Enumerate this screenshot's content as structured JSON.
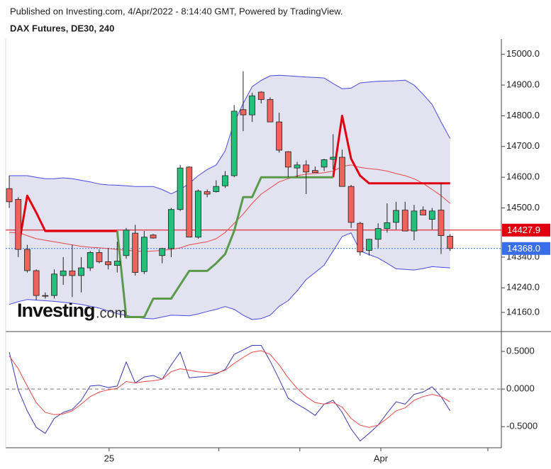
{
  "header": {
    "published": "Published on Investing.com, 4/Apr/2022 - 8:14:40 GMT, Powered by TradingView.",
    "watermark": [
      "Investing",
      ".com"
    ]
  },
  "chart_data": [
    {
      "type": "candlestick",
      "title": "DAX Futures, DE30, 240",
      "xlim": [
        -0.4,
        54.7
      ],
      "xticks": [
        11.1,
        23.3,
        32.3,
        41.3,
        53.2
      ],
      "xtick_labels": [
        "25",
        null,
        null,
        "Apr",
        null
      ],
      "ylim": [
        14100,
        15050
      ],
      "yticks": [
        {
          "value": 15000,
          "label": "15000.0"
        },
        {
          "value": 14900,
          "label": "14900.0"
        },
        {
          "value": 14800,
          "label": "14800.0"
        },
        {
          "value": 14700,
          "label": "14700.0"
        },
        {
          "value": 14600,
          "label": "14600.0"
        },
        {
          "value": 14500,
          "label": "14500.0"
        },
        {
          "value": 14340,
          "label": "14340.0"
        },
        {
          "value": 14240,
          "label": "14240.0"
        },
        {
          "value": 14160,
          "label": "14160.0"
        }
      ],
      "up_color": "#22c07a",
      "down_color": "#f0625c",
      "band_fill": "#e2e2f0",
      "open": [
        14563,
        14528,
        14365,
        14296,
        14215,
        14215,
        14280,
        14295,
        14280,
        14305,
        14355,
        14325,
        14313,
        14345,
        14418,
        14293,
        14412,
        14345,
        14368,
        14495,
        14633,
        14405,
        14553,
        14553,
        14572,
        14605,
        14820,
        14803,
        14877,
        14853,
        14780,
        14683,
        14630,
        14640,
        14622,
        14633,
        14658,
        14665,
        14570,
        14450,
        14362,
        14398,
        14433,
        14453,
        14493,
        14425,
        14493,
        14463,
        14493,
        14408
      ],
      "high": [
        14605,
        14535,
        14380,
        14300,
        14225,
        14300,
        14340,
        14380,
        14340,
        14360,
        14365,
        14370,
        14390,
        14435,
        14445,
        14425,
        14415,
        14370,
        14500,
        14640,
        14635,
        14560,
        14560,
        14590,
        14620,
        14835,
        14945,
        14875,
        14880,
        14860,
        14810,
        14685,
        14650,
        14655,
        14635,
        14660,
        14740,
        14690,
        14575,
        14455,
        14400,
        14450,
        14515,
        14520,
        14520,
        14510,
        14505,
        14500,
        14580,
        14415
      ],
      "low": [
        14500,
        14340,
        14290,
        14200,
        14205,
        14205,
        14250,
        14210,
        14225,
        14295,
        14320,
        14300,
        14290,
        14335,
        14280,
        14285,
        14400,
        14320,
        14340,
        14490,
        14405,
        14400,
        14535,
        14550,
        14565,
        14600,
        14750,
        14780,
        14840,
        14780,
        14680,
        14600,
        14600,
        14545,
        14615,
        14620,
        14625,
        14570,
        14435,
        14345,
        14345,
        14370,
        14420,
        14430,
        14425,
        14395,
        14480,
        14430,
        14350,
        14360
      ],
      "close": [
        14520,
        14365,
        14296,
        14215,
        14213,
        14285,
        14295,
        14280,
        14305,
        14355,
        14325,
        14315,
        14327,
        14428,
        14290,
        14405,
        14402,
        14368,
        14495,
        14630,
        14405,
        14555,
        14545,
        14570,
        14605,
        14815,
        14803,
        14865,
        14853,
        14780,
        14688,
        14633,
        14640,
        14617,
        14615,
        14657,
        14665,
        14570,
        14453,
        14357,
        14398,
        14433,
        14452,
        14492,
        14425,
        14490,
        14477,
        14490,
        14410,
        14368
      ],
      "series": [
        {
          "name": "upper",
          "color": "#4a4ae0",
          "width": 1,
          "values": [
            14605,
            14605,
            14605,
            14600,
            14595,
            14595,
            14598,
            14595,
            14590,
            14585,
            14578,
            14575,
            14574,
            14572,
            14570,
            14570,
            14570,
            14560,
            14546,
            14560,
            14580,
            14605,
            14625,
            14640,
            14686,
            14779,
            14840,
            14895,
            14915,
            14930,
            14932,
            14930,
            14928,
            14926,
            14925,
            14923,
            14905,
            14888,
            14890,
            14907,
            14910,
            14912,
            14913,
            14914,
            14916,
            14900,
            14870,
            14837,
            14780,
            14726
          ]
        },
        {
          "name": "lower",
          "color": "#4a4ae0",
          "width": 1,
          "values": [
            14186,
            14195,
            14202,
            14200,
            14198,
            14196,
            14193,
            14190,
            14186,
            14180,
            14174,
            14165,
            14156,
            14150,
            14144,
            14141,
            14139,
            14145,
            14151,
            14150,
            14149,
            14155,
            14163,
            14170,
            14179,
            14170,
            14151,
            14137,
            14140,
            14151,
            14180,
            14198,
            14230,
            14267,
            14290,
            14314,
            14360,
            14407,
            14419,
            14360,
            14348,
            14337,
            14320,
            14302,
            14300,
            14298,
            14303,
            14309,
            14307,
            14305
          ]
        },
        {
          "name": "basis",
          "color": "#e84848",
          "width": 1,
          "values": [
            14420,
            14420,
            14410,
            14400,
            14395,
            14390,
            14385,
            14380,
            14375,
            14372,
            14370,
            14368,
            14365,
            14362,
            14360,
            14358,
            14360,
            14362,
            14365,
            14370,
            14380,
            14385,
            14390,
            14400,
            14420,
            14450,
            14480,
            14515,
            14545,
            14565,
            14585,
            14595,
            14605,
            14610,
            14612,
            14615,
            14620,
            14635,
            14640,
            14632,
            14628,
            14625,
            14620,
            14612,
            14605,
            14595,
            14580,
            14560,
            14540,
            14515
          ]
        },
        {
          "name": "stop-down",
          "color": "#e00010",
          "width": 3,
          "values": [
            null,
            14368,
            14540,
            14485,
            14425,
            14425,
            14425,
            14425,
            14425,
            14425,
            14425,
            14425,
            14425,
            null,
            null,
            null,
            null,
            null,
            null,
            null,
            null,
            null,
            null,
            null,
            null,
            null,
            null,
            null,
            null,
            null,
            null,
            null,
            null,
            null,
            null,
            null,
            14600,
            14800,
            14660,
            14605,
            14580,
            14580,
            14580,
            14580,
            14580,
            14580,
            14580,
            14580,
            14580,
            14580
          ]
        },
        {
          "name": "stop-up",
          "color": "#5a9a4a",
          "width": 3,
          "values": [
            null,
            null,
            null,
            null,
            null,
            null,
            null,
            null,
            null,
            null,
            null,
            null,
            14425,
            14145,
            14145,
            14145,
            14205,
            14205,
            14205,
            14250,
            14295,
            14295,
            14295,
            14320,
            14350,
            14425,
            14535,
            14535,
            14600,
            14600,
            14600,
            14600,
            14600,
            14600,
            14600,
            14600,
            14600,
            null,
            null,
            null,
            null,
            null,
            null,
            null,
            null,
            null,
            null,
            null,
            null,
            null
          ]
        }
      ],
      "price_lines": [
        {
          "value": 14427.9,
          "label": "14427.9",
          "color": "#e00010",
          "dash": false
        },
        {
          "value": 14368.0,
          "label": "14368.0",
          "color": "#3a6ee8",
          "dash": true
        }
      ]
    },
    {
      "type": "line",
      "xlim": [
        -0.4,
        54.7
      ],
      "ylim": [
        -0.78,
        0.745
      ],
      "yticks": [
        {
          "value": 0.5,
          "label": "0.5000"
        },
        {
          "value": 0,
          "label": "0.0000"
        },
        {
          "value": -0.5,
          "label": "-0.5000"
        }
      ],
      "zero_line": true,
      "series": [
        {
          "name": "macd",
          "color": "#3a3ab0",
          "values": [
            0.49,
            -0.01,
            -0.29,
            -0.51,
            -0.59,
            -0.39,
            -0.31,
            -0.27,
            -0.15,
            0.04,
            0.05,
            0.02,
            0.04,
            0.36,
            0.08,
            0.16,
            0.18,
            0.13,
            0.32,
            0.49,
            0.15,
            0.16,
            0.17,
            0.2,
            0.26,
            0.46,
            0.52,
            0.58,
            0.58,
            0.37,
            0.13,
            -0.12,
            -0.2,
            -0.27,
            -0.35,
            -0.2,
            -0.15,
            -0.31,
            -0.53,
            -0.69,
            -0.59,
            -0.48,
            -0.32,
            -0.17,
            -0.2,
            -0.07,
            -0.04,
            0.03,
            -0.1,
            -0.29
          ]
        },
        {
          "name": "signal",
          "color": "#e84848",
          "values": [
            0.44,
            0.27,
            0.04,
            -0.18,
            -0.31,
            -0.34,
            -0.33,
            -0.29,
            -0.2,
            -0.1,
            -0.04,
            -0.01,
            0.01,
            0.1,
            0.08,
            0.1,
            0.11,
            0.13,
            0.23,
            0.27,
            0.25,
            0.23,
            0.22,
            0.21,
            0.25,
            0.34,
            0.42,
            0.49,
            0.51,
            0.46,
            0.32,
            0.15,
            0.01,
            -0.1,
            -0.18,
            -0.2,
            -0.18,
            -0.24,
            -0.39,
            -0.48,
            -0.51,
            -0.48,
            -0.39,
            -0.29,
            -0.25,
            -0.15,
            -0.1,
            -0.07,
            -0.1,
            -0.17
          ]
        }
      ]
    }
  ]
}
